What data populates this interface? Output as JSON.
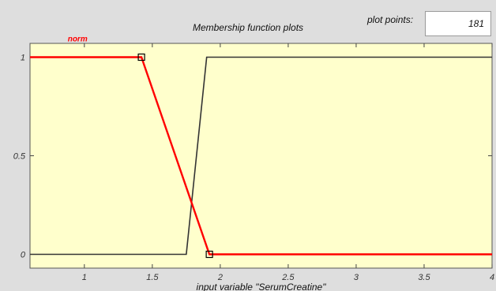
{
  "panel": {
    "title": "Membership function plots",
    "plot_points_label": "plot points:",
    "plot_points_value": "181",
    "xlabel": "input variable \"SerumCreatine\""
  },
  "colors": {
    "plot_bg": "#ffffcc",
    "selected_mf": "#ff0000",
    "other_mf": "#333333"
  },
  "chart_data": {
    "type": "line",
    "xlabel": "input variable \"SerumCreatine\"",
    "ylabel": "",
    "xlim": [
      0.6,
      4
    ],
    "ylim": [
      -0.07,
      1.07
    ],
    "xticks": [
      1,
      1.5,
      2,
      2.5,
      3,
      3.5,
      4
    ],
    "xtick_labels": [
      "1",
      "1.5",
      "2",
      "2.5",
      "3",
      "3.5",
      "4"
    ],
    "yticks": [
      0,
      0.5,
      1
    ],
    "ytick_labels": [
      "0",
      "0.5",
      "1"
    ],
    "grid": false,
    "series": [
      {
        "name": "norm",
        "color": "#ff0000",
        "selected": true,
        "x": [
          0.6,
          1.42,
          1.92,
          4
        ],
        "y": [
          1,
          1,
          0,
          0
        ],
        "handles": [
          [
            1.42,
            1
          ],
          [
            1.92,
            0
          ]
        ]
      },
      {
        "color": "#333333",
        "selected": false,
        "x": [
          0.6,
          1.75,
          1.9,
          4
        ],
        "y": [
          0,
          0,
          1,
          1
        ]
      }
    ]
  }
}
